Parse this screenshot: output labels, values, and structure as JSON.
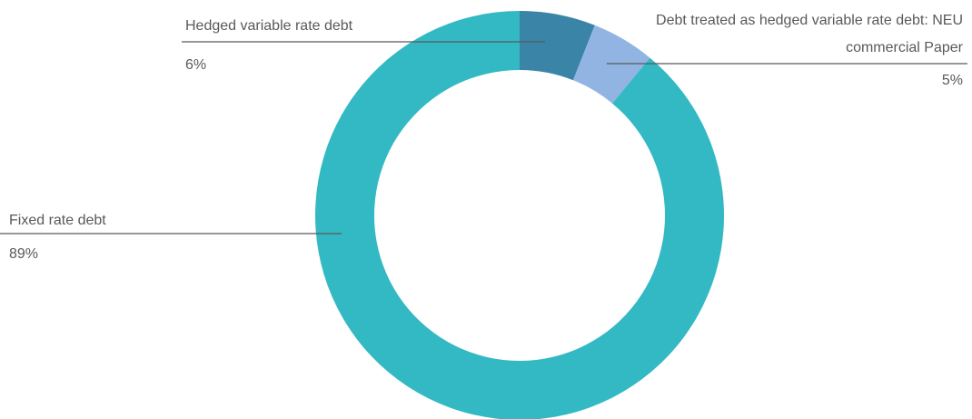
{
  "chart_data": {
    "type": "pie",
    "donut": true,
    "categories": [
      "Hedged variable rate debt",
      "Debt treated as hedged variable rate debt: NEU commercial Paper",
      "Fixed rate debt"
    ],
    "values": [
      6,
      5,
      89
    ],
    "value_labels": [
      "6%",
      "5%",
      "89%"
    ],
    "colors": [
      "#3a84a8",
      "#92b4e3",
      "#33b9c4"
    ]
  }
}
